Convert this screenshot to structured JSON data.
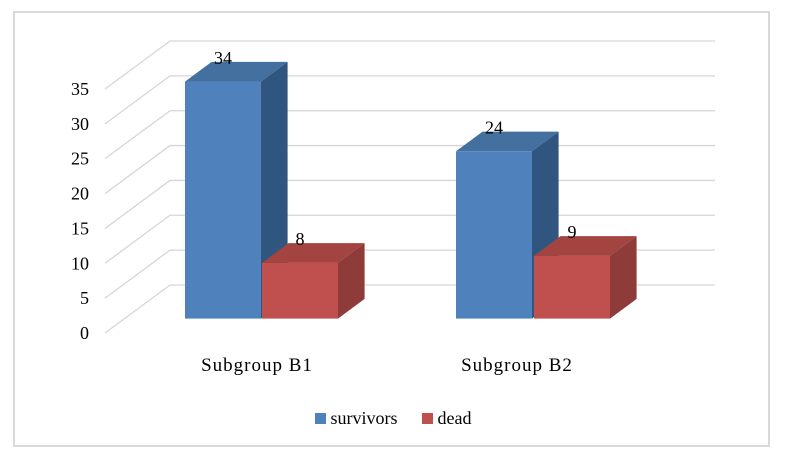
{
  "chart_data": {
    "type": "bar",
    "style": "3d-clustered-column",
    "title": "",
    "xlabel": "",
    "ylabel": "",
    "categories": [
      "Subgroup B1",
      "Subgroup B2"
    ],
    "series": [
      {
        "name": "survivors",
        "values": [
          34,
          24
        ],
        "color": "#4F81BD",
        "color_top": "#44709F",
        "color_side": "#305680"
      },
      {
        "name": "dead",
        "values": [
          8,
          9
        ],
        "color": "#C0504D",
        "color_top": "#A34441",
        "color_side": "#8E3B39"
      }
    ],
    "data_labels": true,
    "yticks": [
      0,
      5,
      10,
      15,
      20,
      25,
      30,
      35
    ],
    "ylim": [
      0,
      35
    ],
    "grid": true,
    "legend_position": "bottom"
  },
  "colors": {
    "gridline": "#D6D6D6",
    "frame_border": "#D9D9D9",
    "text": "#000000",
    "background": "#FFFFFF"
  }
}
